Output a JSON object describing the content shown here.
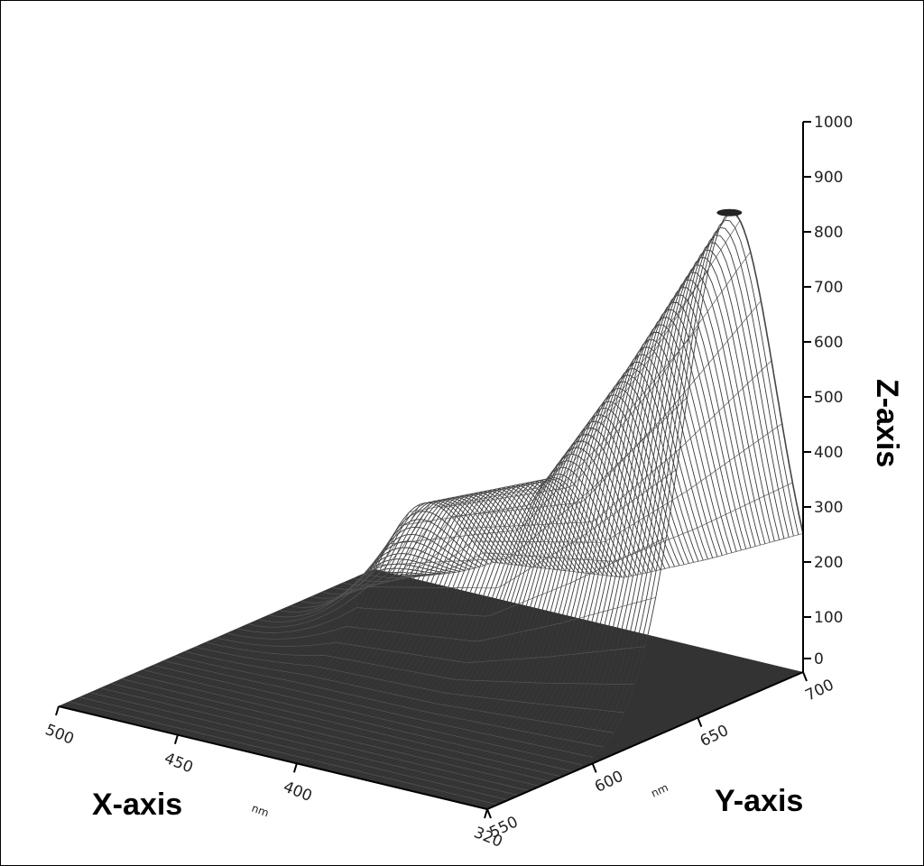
{
  "chart_data": {
    "type": "surface",
    "xlabel": "X-axis",
    "ylabel": "Y-axis",
    "zlabel": "Z-axis",
    "x_unit": "nm",
    "y_unit": "nm",
    "x_ticks": [
      "500",
      "450",
      "400",
      "320"
    ],
    "y_ticks": [
      "550",
      "600",
      "650",
      "700"
    ],
    "z_ticks": [
      "0",
      "100",
      "200",
      "300",
      "400",
      "500",
      "600",
      "700",
      "800",
      "900",
      "1000"
    ],
    "xlim": [
      320,
      500
    ],
    "ylim": [
      550,
      700
    ],
    "zlim": [
      0,
      1000
    ],
    "emission_peak": {
      "y": 665,
      "z": 940
    },
    "ridge_peaks": [
      {
        "x": 320,
        "z": 940
      },
      {
        "x": 360,
        "z": 610
      },
      {
        "x": 395,
        "z": 350
      },
      {
        "x": 450,
        "z": 240
      }
    ],
    "surface_color": "#333333",
    "background": "#ffffff"
  }
}
